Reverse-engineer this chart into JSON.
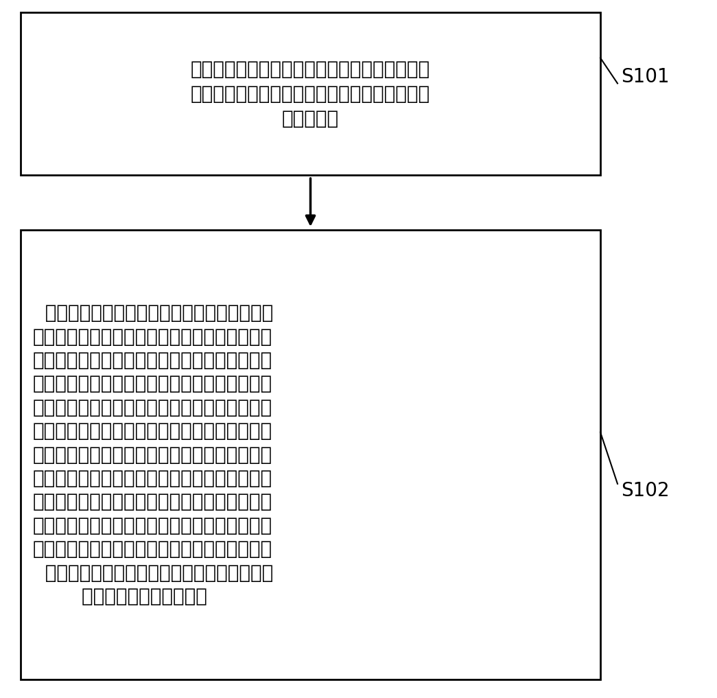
{
  "box1_lines": [
    "第一控制芯片输出若干初始第一寄存器值和若干",
    "初始第二寄存器值给第二控制芯片，并检测是否",
    "有电池接入"
  ],
  "box2_lines": [
    "  在第一控制芯片检测到有电池接入时，第一控",
    "制芯片根据电池的类型确定若干第一寄存器值，",
    "并将所述若干第一寄存器输出第一寄存器值输出",
    "给所述第二控制芯片以覆盖所述若干初始第一寄",
    "存器值；并使所述第二控制芯片根据电池的类型",
    "确定若干第二寄存器值并覆盖所述若干初始第二",
    "寄存器值；第二控制芯片根据所述若干第一寄存",
    "器值和若干第二寄存器值分别对电池的电力参数",
    "和终端的供电参数进行调整，以满足终端供电要",
    "求；在第一控制芯片检测到没有电池接入时，第",
    "二控制芯片根据所述若干初始第一寄存器值和若",
    "  于初始第二寄存器值对终端的供电参数进行调",
    "        整，以满足终端供电要求"
  ],
  "label1": "S101",
  "label2": "S102",
  "bg_color": "#ffffff",
  "box_edge_color": "#000000",
  "text_color": "#000000",
  "arrow_color": "#000000",
  "font_size_box": 20,
  "font_size_label": 20
}
